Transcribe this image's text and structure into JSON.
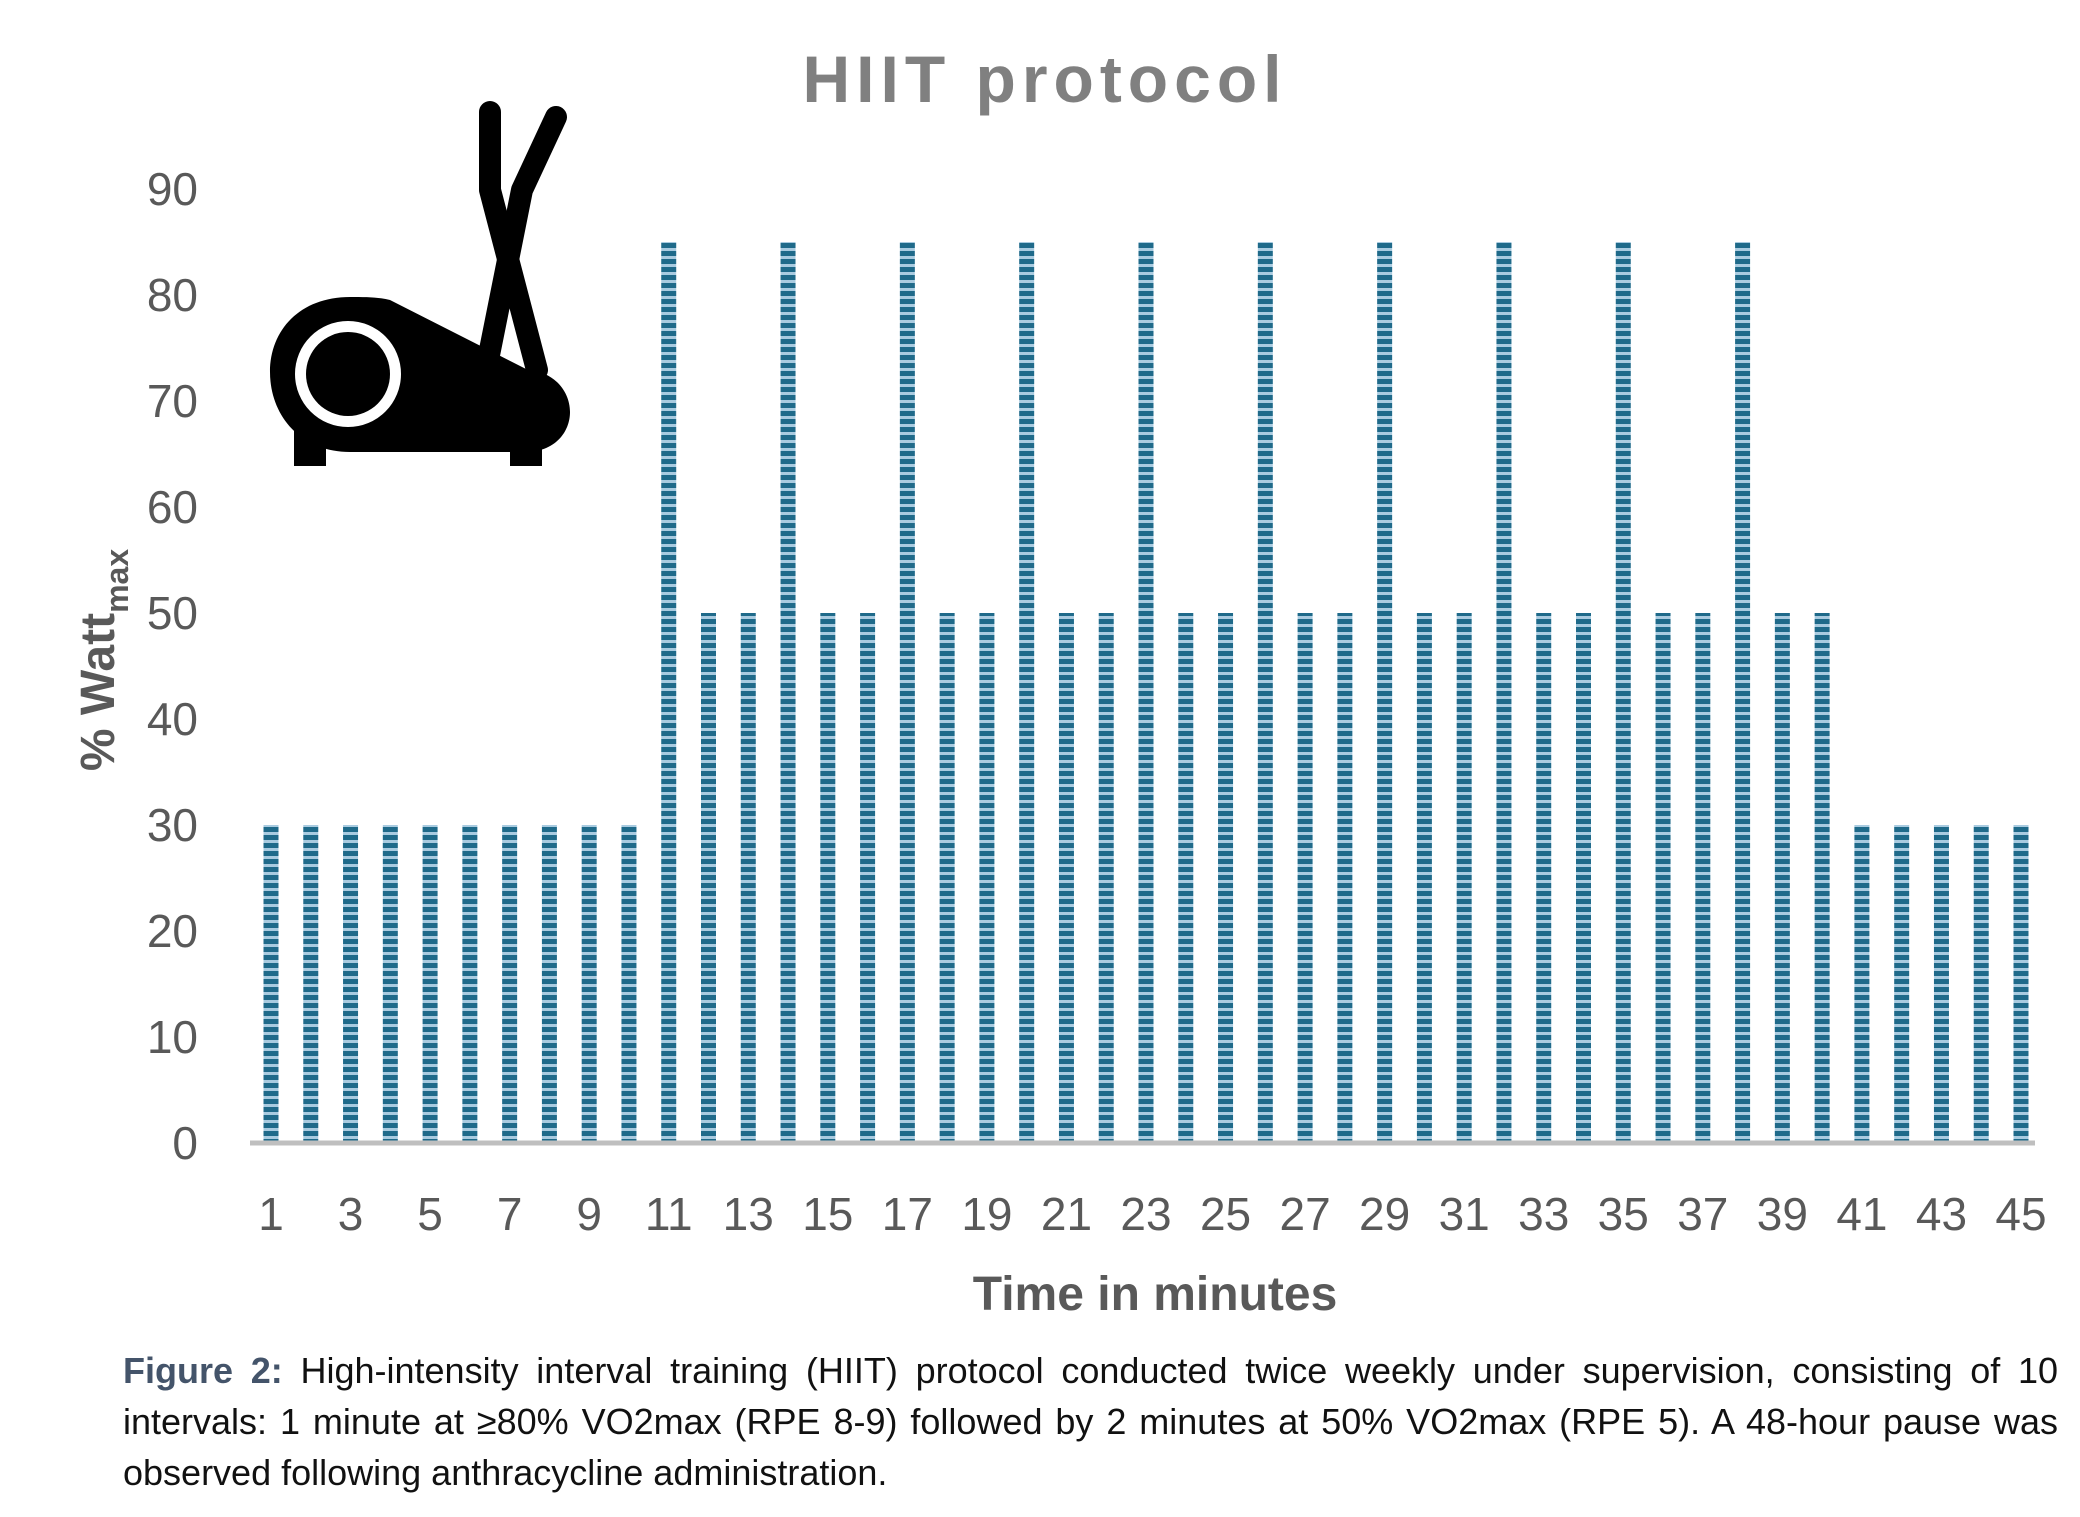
{
  "chart_data": {
    "type": "bar",
    "title": "HIIT protocol",
    "xlabel": "Time in minutes",
    "ylabel_main": "% Watt",
    "ylabel_sub": "max",
    "ylim": [
      0,
      90
    ],
    "yticks": [
      0,
      10,
      20,
      30,
      40,
      50,
      60,
      70,
      80,
      90
    ],
    "grid": false,
    "legend": "none",
    "categories": [
      1,
      2,
      3,
      4,
      5,
      6,
      7,
      8,
      9,
      10,
      11,
      12,
      13,
      14,
      15,
      16,
      17,
      18,
      19,
      20,
      21,
      22,
      23,
      24,
      25,
      26,
      27,
      28,
      29,
      30,
      31,
      32,
      33,
      34,
      35,
      36,
      37,
      38,
      39,
      40,
      41,
      42,
      43,
      44,
      45
    ],
    "x_tick_labels": [
      "1",
      "3",
      "5",
      "7",
      "9",
      "11",
      "13",
      "15",
      "17",
      "19",
      "21",
      "23",
      "25",
      "27",
      "29",
      "31",
      "33",
      "35",
      "37",
      "39",
      "41",
      "43",
      "45"
    ],
    "values": [
      30,
      30,
      30,
      30,
      30,
      30,
      30,
      30,
      30,
      30,
      85,
      50,
      50,
      85,
      50,
      50,
      85,
      50,
      50,
      85,
      50,
      50,
      85,
      50,
      50,
      85,
      50,
      50,
      85,
      50,
      50,
      85,
      50,
      50,
      85,
      50,
      50,
      85,
      50,
      50,
      30,
      30,
      30,
      30,
      30
    ],
    "bar_color": "#1f6a8a",
    "bar_stripe_color": "#a9cbe0",
    "axis_color": "#bfbfbf",
    "tick_label_color": "#595959"
  },
  "icon": "elliptical-trainer-icon",
  "caption": {
    "label": "Figure 2:",
    "text": " High-intensity interval training (HIIT) protocol conducted twice weekly under supervision, consisting of 10 intervals: 1 minute at ≥80% VO2max (RPE 8-9) followed by 2 minutes at 50% VO2max (RPE 5). A 48-hour pause was observed following anthracycline administration."
  }
}
